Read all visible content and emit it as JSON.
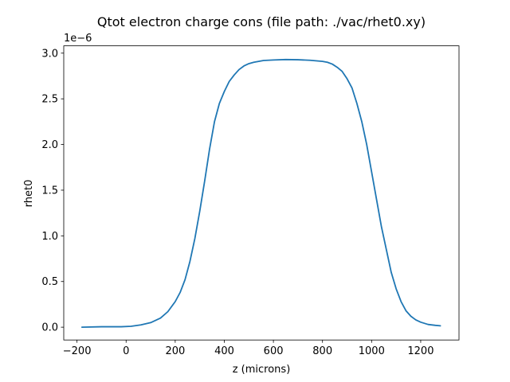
{
  "chart_data": {
    "type": "line",
    "title": "Qtot electron charge cons  (file path: ./vac/rhet0.xy)",
    "xlabel": "z (microns)",
    "ylabel": "rhet0",
    "offset_text": "1e−6",
    "xlim": [
      -254,
      1356
    ],
    "ylim": [
      -0.14,
      3.08
    ],
    "xticks": [
      -200,
      0,
      200,
      400,
      600,
      800,
      1000,
      1200
    ],
    "xtick_labels": [
      "−200",
      "0",
      "200",
      "400",
      "600",
      "800",
      "1000",
      "1200"
    ],
    "yticks": [
      0.0,
      0.5,
      1.0,
      1.5,
      2.0,
      2.5,
      3.0
    ],
    "ytick_labels": [
      "0.0",
      "0.5",
      "1.0",
      "1.5",
      "2.0",
      "2.5",
      "3.0"
    ],
    "grid": false,
    "series": [
      {
        "color": "#1f77b4",
        "x": [
          -180,
          -100,
          -20,
          20,
          60,
          100,
          140,
          170,
          200,
          220,
          240,
          260,
          280,
          300,
          320,
          340,
          360,
          380,
          400,
          420,
          440,
          460,
          480,
          500,
          520,
          540,
          560,
          600,
          650,
          700,
          750,
          800,
          820,
          840,
          860,
          880,
          900,
          920,
          940,
          960,
          980,
          1000,
          1020,
          1040,
          1060,
          1080,
          1100,
          1120,
          1140,
          1160,
          1180,
          1200,
          1230,
          1260,
          1280
        ],
        "y": [
          0.0,
          0.005,
          0.005,
          0.01,
          0.025,
          0.05,
          0.1,
          0.17,
          0.28,
          0.38,
          0.52,
          0.72,
          0.97,
          1.27,
          1.6,
          1.95,
          2.25,
          2.45,
          2.58,
          2.69,
          2.76,
          2.82,
          2.86,
          2.885,
          2.9,
          2.91,
          2.92,
          2.925,
          2.93,
          2.928,
          2.922,
          2.91,
          2.9,
          2.88,
          2.845,
          2.8,
          2.72,
          2.62,
          2.45,
          2.25,
          2.0,
          1.7,
          1.4,
          1.1,
          0.85,
          0.6,
          0.42,
          0.28,
          0.18,
          0.12,
          0.08,
          0.055,
          0.03,
          0.02,
          0.015
        ]
      }
    ]
  }
}
